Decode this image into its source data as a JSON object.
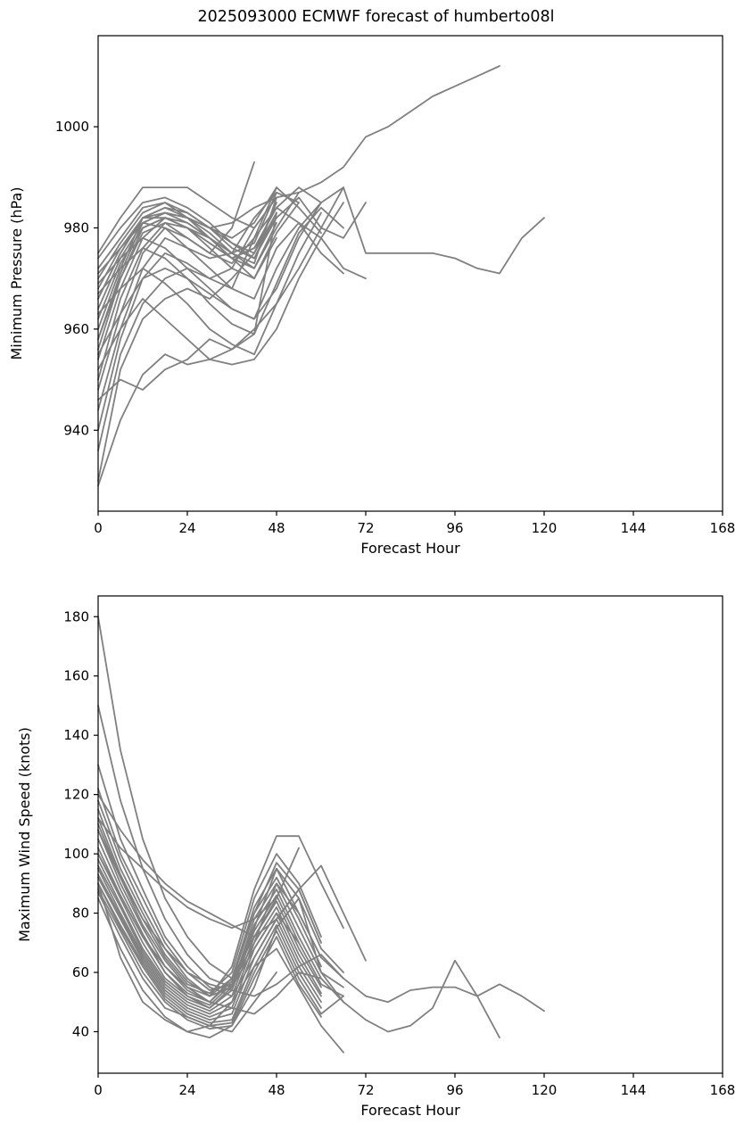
{
  "title": "2025093000 ECMWF forecast of humberto08l",
  "style": {
    "line_color": "#808080",
    "axis_color": "#000000",
    "text_color": "#000000",
    "line_width": 1.8
  },
  "chart_data": [
    {
      "type": "line",
      "name": "minimum-pressure-chart",
      "title": "",
      "xlabel": "Forecast Hour",
      "ylabel": "Minimum Pressure (hPa)",
      "xlim": [
        0,
        168
      ],
      "ylim": [
        924,
        1018
      ],
      "xticks": [
        0,
        24,
        48,
        72,
        96,
        120,
        144,
        168
      ],
      "yticks": [
        940,
        960,
        980,
        1000
      ],
      "grid": false,
      "legend": "none",
      "x_step_hours": 6,
      "x_note": "x value of point i in every member = i * x_step_hours",
      "members_y": [
        [
          930,
          952,
          962,
          966,
          968,
          966,
          970,
          975,
          985
        ],
        [
          936,
          955,
          965,
          970,
          972,
          970,
          968,
          978,
          988
        ],
        [
          940,
          958,
          970,
          975,
          973,
          970,
          972,
          980,
          986
        ],
        [
          944,
          960,
          972,
          978,
          976,
          974,
          975,
          982,
          987,
          985
        ],
        [
          948,
          963,
          975,
          980,
          978,
          975,
          973,
          978,
          984,
          988,
          985
        ],
        [
          950,
          966,
          976,
          981,
          980,
          978,
          974,
          976,
          982,
          986,
          980,
          978,
          985
        ],
        [
          954,
          968,
          978,
          982,
          980,
          976,
          972,
          970,
          978
        ],
        [
          956,
          970,
          980,
          982,
          981,
          978,
          975,
          972,
          980,
          987
        ],
        [
          958,
          971,
          981,
          983,
          982,
          980,
          977,
          974,
          983
        ],
        [
          960,
          972,
          982,
          984,
          982,
          979,
          975,
          973,
          986
        ],
        [
          962,
          973,
          980,
          982,
          980,
          977,
          974,
          976,
          984,
          981,
          975,
          971
        ],
        [
          964,
          974,
          981,
          983,
          981,
          978,
          975,
          977,
          987
        ],
        [
          966,
          975,
          982,
          984,
          983,
          980,
          978,
          981,
          988,
          984,
          979
        ],
        [
          968,
          976,
          982,
          982,
          980,
          977,
          974,
          972,
          981
        ],
        [
          970,
          977,
          983,
          985,
          983,
          980,
          976,
          974,
          982
        ],
        [
          972,
          978,
          984,
          985,
          982,
          978,
          974,
          970,
          979,
          985
        ],
        [
          974,
          980,
          985,
          986,
          984,
          981,
          977,
          975,
          983
        ],
        [
          975,
          982,
          988,
          988,
          988,
          985,
          982,
          980,
          986
        ],
        [
          971,
          976,
          981,
          980,
          976,
          972,
          968,
          966,
          976,
          981,
          978,
          972,
          970
        ],
        [
          969,
          974,
          978,
          976,
          972,
          968,
          964,
          962,
          972,
          980,
          985
        ],
        [
          967,
          972,
          976,
          974,
          970,
          965,
          961,
          959,
          969,
          979,
          984,
          980
        ],
        [
          963,
          968,
          972,
          969,
          965,
          960,
          957,
          955,
          965,
          975,
          983
        ],
        [
          952,
          960,
          966,
          962,
          958,
          954,
          953,
          954,
          960,
          970,
          978,
          985
        ],
        [
          946,
          950,
          948,
          952,
          954,
          958,
          956,
          960,
          965,
          972,
          980,
          988
        ],
        [
          929,
          942,
          951,
          955,
          953,
          954,
          956,
          959,
          983
        ],
        [
          966,
          975,
          982,
          983,
          982,
          980,
          981,
          984,
          986,
          987,
          989,
          992,
          998,
          1000,
          1003,
          1006,
          1008,
          1010,
          1012
        ],
        [
          955,
          963,
          970,
          972,
          970,
          967,
          964,
          962,
          968,
          978,
          985,
          988,
          975,
          975,
          975,
          975,
          974,
          972,
          971,
          978,
          982
        ],
        [
          958,
          970,
          979,
          981,
          978,
          975,
          980,
          993
        ]
      ]
    },
    {
      "type": "line",
      "name": "maximum-wind-speed-chart",
      "title": "",
      "xlabel": "Forecast Hour",
      "ylabel": "Maximum Wind Speed (knots)",
      "xlim": [
        0,
        168
      ],
      "ylim": [
        26,
        187
      ],
      "xticks": [
        0,
        24,
        48,
        72,
        96,
        120,
        144,
        168
      ],
      "yticks": [
        40,
        60,
        80,
        100,
        120,
        140,
        160,
        180
      ],
      "grid": false,
      "legend": "none",
      "x_step_hours": 6,
      "x_note": "x value of point i in every member = i * x_step_hours",
      "members_y": [
        [
          180,
          135,
          105,
          85,
          72,
          63,
          58,
          72,
          85
        ],
        [
          150,
          118,
          95,
          78,
          66,
          58,
          55,
          68,
          80,
          70
        ],
        [
          130,
          105,
          88,
          72,
          62,
          55,
          52,
          65,
          78,
          88,
          70
        ],
        [
          122,
          100,
          85,
          70,
          60,
          54,
          56,
          70,
          90,
          80,
          65,
          58
        ],
        [
          118,
          98,
          82,
          68,
          58,
          52,
          55,
          75,
          95,
          85,
          68,
          60
        ],
        [
          115,
          95,
          80,
          66,
          57,
          52,
          58,
          80,
          97,
          88,
          70
        ],
        [
          112,
          93,
          78,
          65,
          56,
          53,
          60,
          85,
          100,
          90,
          72
        ],
        [
          110,
          92,
          76,
          64,
          55,
          52,
          62,
          88,
          106,
          106,
          90,
          75
        ],
        [
          108,
          90,
          75,
          62,
          54,
          50,
          58,
          82,
          95,
          80,
          65
        ],
        [
          105,
          88,
          73,
          60,
          52,
          48,
          55,
          78,
          90,
          75,
          60,
          55
        ],
        [
          102,
          86,
          72,
          60,
          53,
          50,
          57,
          80,
          92,
          78,
          62
        ],
        [
          100,
          85,
          70,
          58,
          52,
          49,
          56,
          76,
          88,
          72,
          58
        ],
        [
          98,
          83,
          68,
          57,
          51,
          48,
          54,
          74,
          86,
          70,
          56,
          52
        ],
        [
          96,
          82,
          67,
          56,
          50,
          47,
          52,
          72,
          84,
          68,
          55
        ],
        [
          95,
          80,
          66,
          55,
          49,
          46,
          50,
          70,
          82,
          66,
          53
        ],
        [
          93,
          79,
          65,
          54,
          48,
          45,
          48,
          68,
          80,
          64,
          52
        ],
        [
          92,
          78,
          64,
          53,
          47,
          44,
          46,
          65,
          78,
          62,
          50
        ],
        [
          90,
          76,
          63,
          52,
          46,
          43,
          44,
          62,
          76,
          60,
          48
        ],
        [
          90,
          75,
          62,
          51,
          45,
          42,
          43,
          60,
          74,
          58,
          46,
          52
        ],
        [
          88,
          74,
          60,
          50,
          44,
          41,
          42,
          58,
          72,
          56,
          45
        ],
        [
          87,
          72,
          58,
          48,
          45,
          42,
          50,
          62,
          68,
          55,
          42,
          33
        ],
        [
          85,
          68,
          54,
          45,
          40,
          38,
          42,
          55,
          75,
          85,
          60,
          50
        ],
        [
          112,
          102,
          95,
          88,
          82,
          78,
          75,
          78,
          85,
          102
        ],
        [
          108,
          92,
          78,
          68,
          60,
          56,
          54,
          52,
          56,
          62,
          66,
          58,
          52,
          50,
          54,
          55,
          55,
          52,
          56,
          52,
          47
        ],
        [
          100,
          86,
          72,
          62,
          55,
          50,
          48,
          46,
          52,
          60,
          58,
          50,
          44,
          40,
          42,
          48,
          64,
          52,
          38
        ],
        [
          90,
          65,
          50,
          44,
          40,
          42,
          40,
          50,
          60
        ],
        [
          120,
          108,
          98,
          90,
          84,
          80,
          76,
          72,
          78,
          88,
          96,
          80,
          64
        ]
      ]
    }
  ]
}
